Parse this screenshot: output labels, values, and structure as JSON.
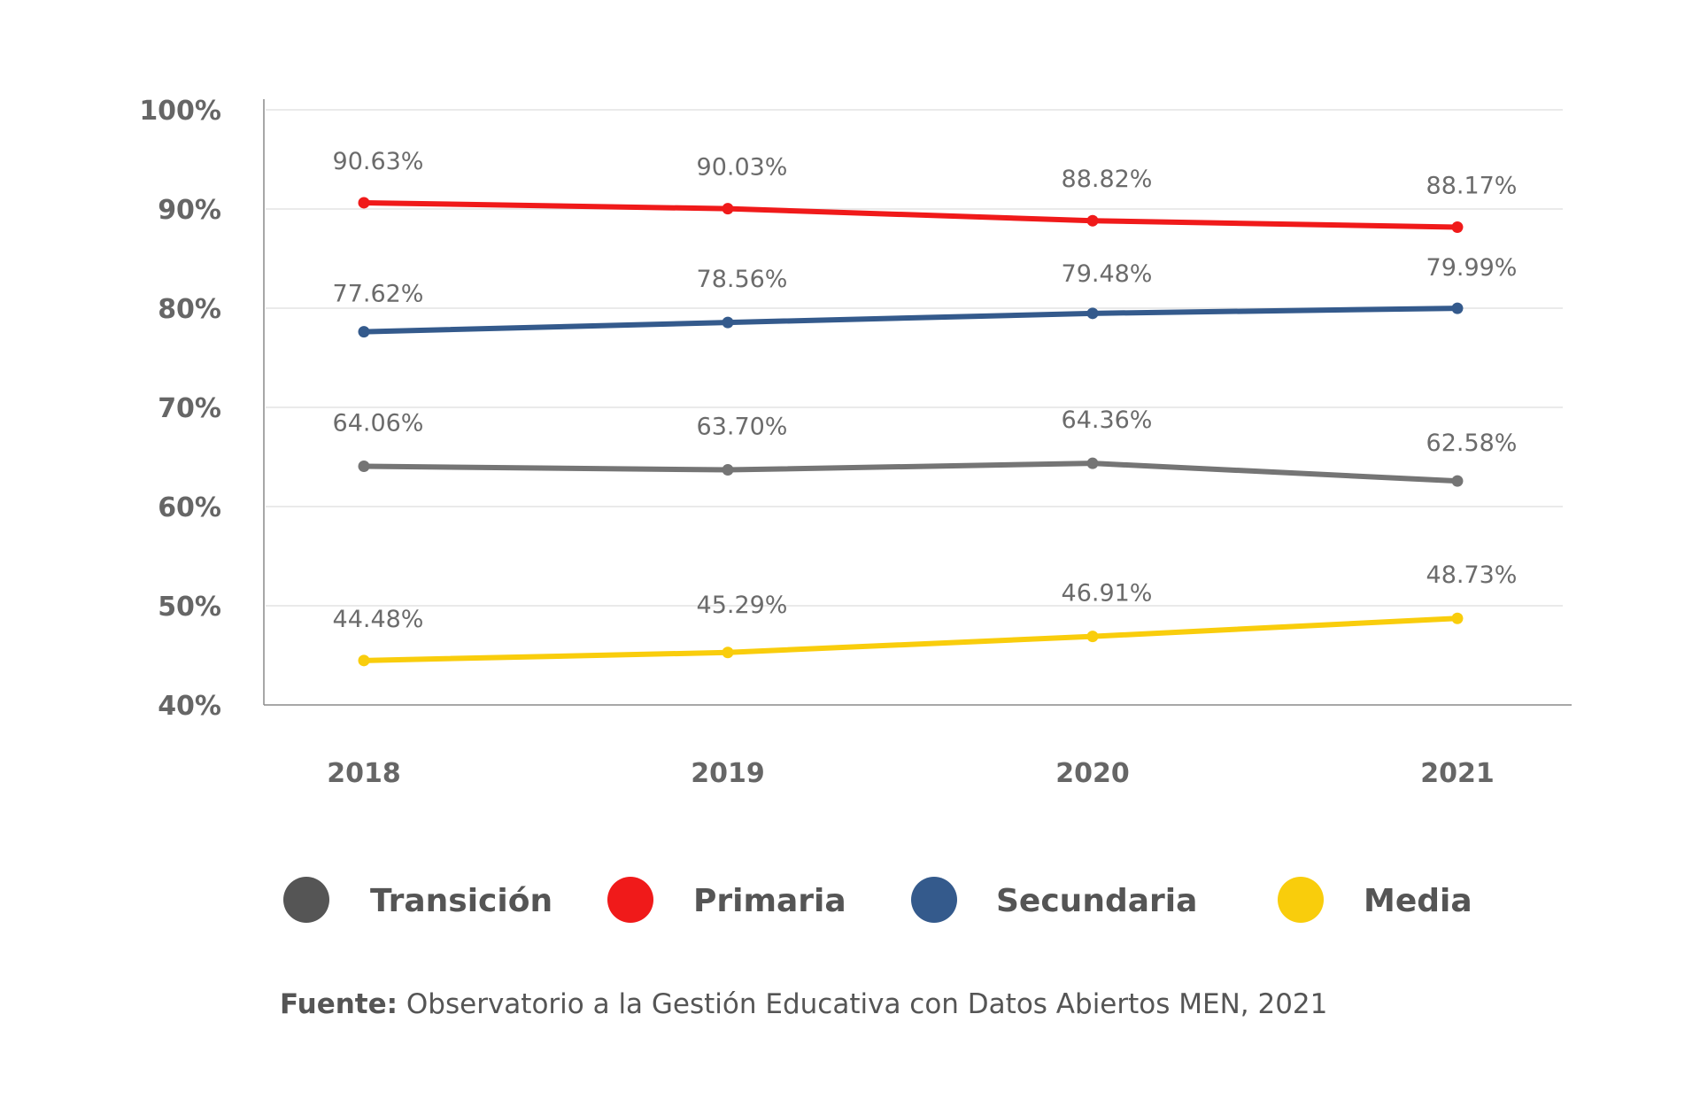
{
  "chart_data": {
    "type": "line",
    "categories": [
      "2018",
      "2019",
      "2020",
      "2021"
    ],
    "ylim": [
      40,
      100
    ],
    "yticks": [
      40,
      50,
      60,
      70,
      80,
      90,
      100
    ],
    "ytick_labels": [
      "40%",
      "50%",
      "60%",
      "70%",
      "80%",
      "90%",
      "100%"
    ],
    "grid": "horizontal",
    "legend": "bottom",
    "series": [
      {
        "name": "Transición",
        "color": "#757575",
        "values": [
          64.06,
          63.7,
          64.36,
          62.58
        ],
        "labels": [
          "64.06%",
          "63.70%",
          "64.36%",
          "62.58%"
        ]
      },
      {
        "name": "Primaria",
        "color": "#f01a1a",
        "values": [
          90.63,
          90.03,
          88.82,
          88.17
        ],
        "labels": [
          "90.63%",
          "90.03%",
          "88.82%",
          "88.17%"
        ]
      },
      {
        "name": "Secundaria",
        "color": "#345a8c",
        "values": [
          77.62,
          78.56,
          79.48,
          79.99
        ],
        "labels": [
          "77.62%",
          "78.56%",
          "79.48%",
          "79.99%"
        ]
      },
      {
        "name": "Media",
        "color": "#f9cd0c",
        "values": [
          44.48,
          45.29,
          46.91,
          48.73
        ],
        "labels": [
          "44.48%",
          "45.29%",
          "46.91%",
          "48.73%"
        ]
      }
    ],
    "legend_colors": [
      "#555555",
      "#f01a1a",
      "#345a8c",
      "#f9cd0c"
    ]
  },
  "source": {
    "prefix": "Fuente:",
    "text": " Observatorio a la Gestión Educativa con Datos Abiertos MEN, 2021"
  }
}
